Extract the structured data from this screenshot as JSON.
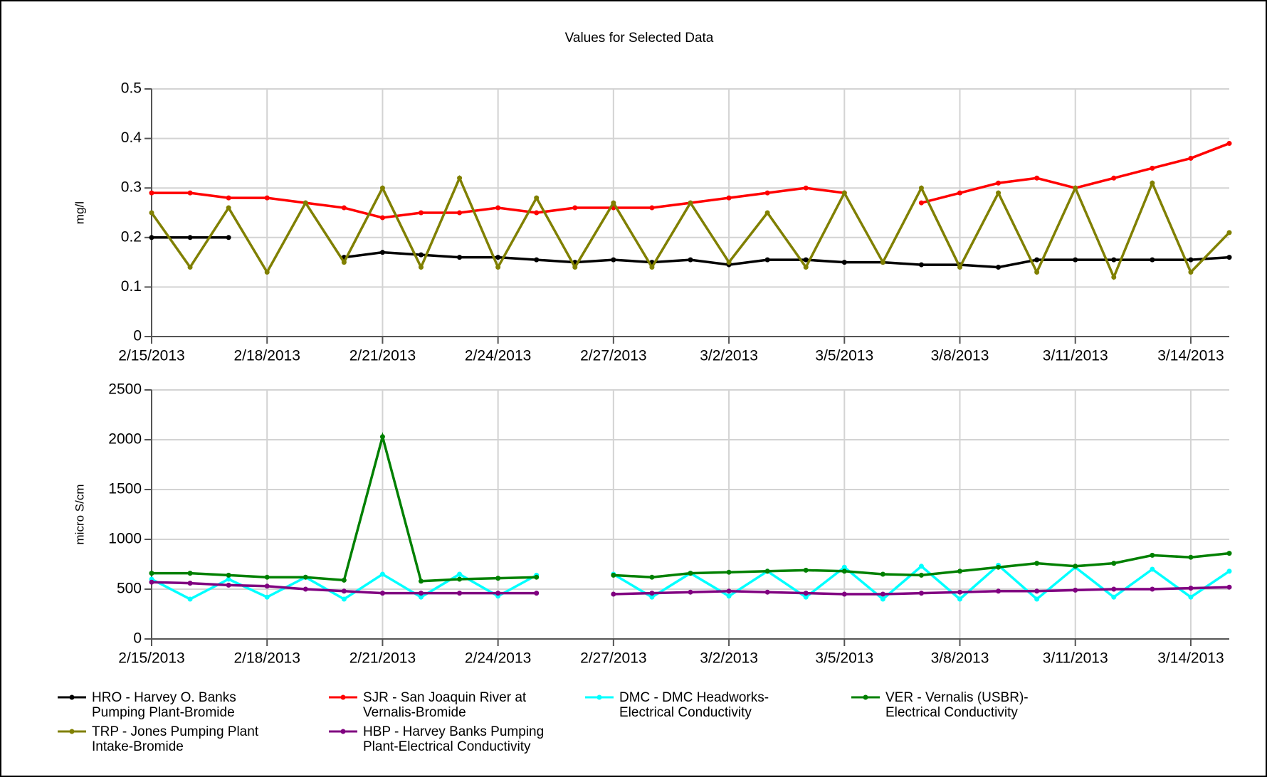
{
  "title": "Values for Selected Data",
  "chart_data": [
    {
      "type": "line",
      "y_label": "mg/l",
      "x": [
        "2/15/2013",
        "2/16/2013",
        "2/17/2013",
        "2/18/2013",
        "2/19/2013",
        "2/20/2013",
        "2/21/2013",
        "2/22/2013",
        "2/23/2013",
        "2/24/2013",
        "2/25/2013",
        "2/26/2013",
        "2/27/2013",
        "2/28/2013",
        "3/1/2013",
        "3/2/2013",
        "3/3/2013",
        "3/4/2013",
        "3/5/2013",
        "3/6/2013",
        "3/7/2013",
        "3/8/2013",
        "3/9/2013",
        "3/10/2013",
        "3/11/2013",
        "3/12/2013",
        "3/13/2013",
        "3/14/2013",
        "3/15/2013"
      ],
      "xlim": [
        "2/15/2013",
        "3/15/2013"
      ],
      "xticks": [
        "2/15/2013",
        "2/18/2013",
        "2/21/2013",
        "2/24/2013",
        "2/27/2013",
        "3/2/2013",
        "3/5/2013",
        "3/8/2013",
        "3/11/2013",
        "3/14/2013"
      ],
      "ylim": [
        0,
        0.5
      ],
      "yticks": [
        0,
        0.1,
        0.2,
        0.3,
        0.4,
        0.5
      ],
      "grid": true,
      "series": [
        {
          "name": "HRO - Harvey O. Banks Pumping Plant-Bromide",
          "color": "#000000",
          "values": [
            0.2,
            0.2,
            0.2,
            null,
            null,
            0.16,
            0.17,
            0.165,
            0.16,
            0.16,
            0.155,
            0.15,
            0.155,
            0.15,
            0.155,
            0.145,
            0.155,
            0.155,
            0.15,
            0.15,
            0.145,
            0.145,
            0.14,
            0.155,
            0.155,
            0.155,
            0.155,
            0.155,
            0.16
          ]
        },
        {
          "name": "SJR - San Joaquin River at Vernalis-Bromide",
          "color": "#ff0000",
          "values": [
            0.29,
            0.29,
            0.28,
            0.28,
            0.27,
            0.26,
            0.24,
            0.25,
            0.25,
            0.26,
            0.25,
            0.26,
            0.26,
            0.26,
            0.27,
            0.28,
            0.29,
            0.3,
            0.29,
            null,
            0.27,
            0.29,
            0.31,
            0.32,
            0.3,
            0.32,
            0.34,
            0.36,
            0.39
          ]
        },
        {
          "name": "TRP - Jones Pumping Plant Intake-Bromide",
          "color": "#808000",
          "values": [
            0.25,
            0.14,
            0.26,
            0.13,
            0.27,
            0.15,
            0.3,
            0.14,
            0.32,
            0.14,
            0.28,
            0.14,
            0.27,
            0.14,
            0.27,
            0.15,
            0.25,
            0.14,
            0.29,
            0.15,
            0.3,
            0.14,
            0.29,
            0.13,
            0.3,
            0.12,
            0.31,
            0.13,
            0.21
          ]
        }
      ]
    },
    {
      "type": "line",
      "y_label": "micro S/cm",
      "x": [
        "2/15/2013",
        "2/16/2013",
        "2/17/2013",
        "2/18/2013",
        "2/19/2013",
        "2/20/2013",
        "2/21/2013",
        "2/22/2013",
        "2/23/2013",
        "2/24/2013",
        "2/25/2013",
        "2/26/2013",
        "2/27/2013",
        "2/28/2013",
        "3/1/2013",
        "3/2/2013",
        "3/3/2013",
        "3/4/2013",
        "3/5/2013",
        "3/6/2013",
        "3/7/2013",
        "3/8/2013",
        "3/9/2013",
        "3/10/2013",
        "3/11/2013",
        "3/12/2013",
        "3/13/2013",
        "3/14/2013",
        "3/15/2013"
      ],
      "xlim": [
        "2/15/2013",
        "3/15/2013"
      ],
      "xticks": [
        "2/15/2013",
        "2/18/2013",
        "2/21/2013",
        "2/24/2013",
        "2/27/2013",
        "3/2/2013",
        "3/5/2013",
        "3/8/2013",
        "3/11/2013",
        "3/14/2013"
      ],
      "ylim": [
        0,
        2500
      ],
      "yticks": [
        0,
        500,
        1000,
        1500,
        2000,
        2500
      ],
      "grid": true,
      "series": [
        {
          "name": "DMC - DMC Headworks-Electrical Conductivity",
          "color": "#00ffff",
          "values": [
            600,
            400,
            600,
            420,
            620,
            400,
            650,
            420,
            650,
            430,
            640,
            null,
            650,
            420,
            660,
            430,
            680,
            420,
            720,
            400,
            730,
            400,
            740,
            400,
            720,
            420,
            700,
            420,
            680
          ]
        },
        {
          "name": "VER - Vernalis (USBR)-Electrical Conductivity",
          "color": "#008000",
          "values": [
            660,
            660,
            640,
            620,
            620,
            590,
            2030,
            580,
            600,
            610,
            620,
            null,
            640,
            620,
            660,
            670,
            680,
            690,
            680,
            650,
            640,
            680,
            720,
            760,
            730,
            760,
            840,
            820,
            860
          ]
        },
        {
          "name": "HBP - Harvey Banks Pumping Plant-Electrical Conductivity",
          "color": "#800080",
          "values": [
            570,
            560,
            540,
            530,
            500,
            480,
            460,
            460,
            460,
            460,
            460,
            null,
            450,
            460,
            470,
            480,
            470,
            460,
            450,
            450,
            460,
            470,
            480,
            480,
            490,
            500,
            500,
            510,
            520
          ]
        }
      ]
    }
  ]
}
